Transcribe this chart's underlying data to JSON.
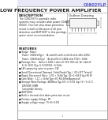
{
  "bg_color": "#ffffff",
  "header_color": "#5555cc",
  "part_number": "C0802YLP",
  "title": "LOW FREQUENCY POWER AMPLIFIER",
  "outline_label": "Outline Drawing",
  "desc_label": "DESCRIPTION",
  "features_label": "FEATURES",
  "description_text": [
    "The C0802YLP is portable radio",
    "systems may consider wide power C0408",
    "00025. Thermal shut down protection",
    "circuit is built on Because of all pins",
    "detection and 8DIP 8DIP in this package,",
    "space saver recommendation."
  ],
  "features_text": [
    "Single  Power",
    "Power: (VW/kHz/Typ.)   (A rated/Vs with 2-ohm/4-ohm 2kHz-10Hz)",
    "Power: (VW/Ohm/Typ.)   (A rated/Vs-6.0 dB/4-ohm THDI+ 10Hz)",
    "Package Pins:   Demo 4-1600 1-ohm all 30% 30% alt. A+ 4bits B",
    "6+G: 1600 (Typ=5.0) 60000E. 4+1kHz",
    "LW comparing noise at power: CW",
    "Small Dimensional Diamond  Grids/Grade(Typ.)  (20+1FT Tested)",
    "Ripple Disconnect Ratio:  0.01 + 1kHz(Typ: 42+1+48 B 4g+60 B)",
    "Gain Wide:  1.11 = 1kHz(Typ+25) RB 4kHz(Approved)",
    "Storage Mono Package  dB/Wons/Typ 4(5 +1+4 B  4gr+5+ 1+2 C)",
    "DIP/SDIP/ DIMM",
    "Compatible Density",
    "8DIP 8002",
    "Built-in thermal shut down protection circuit",
    "Positive supply Voltage: PP",
    "Supply voltage range: 75+0+3.0/8"
  ],
  "border_color": "#999999",
  "line_color": "#222222",
  "text_color": "#222222",
  "gray_color": "#888888",
  "page_num": "1",
  "top_stripe_color": "#e8e8f8",
  "ic_fill": "#f5f5f5",
  "ic_edge": "#666666"
}
